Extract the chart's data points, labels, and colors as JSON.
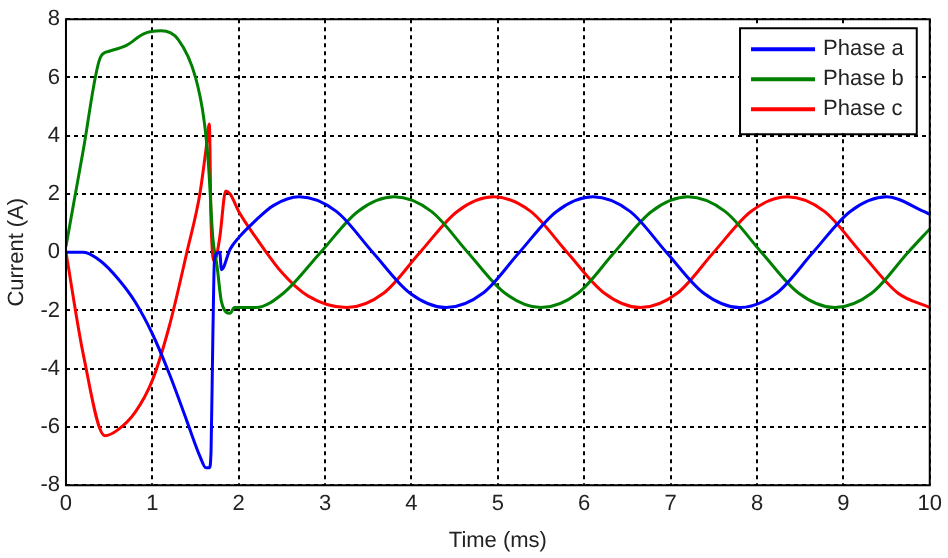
{
  "chart_data": {
    "type": "line",
    "xlabel": "Time (ms)",
    "ylabel": "Current (A)",
    "xlim": [
      0,
      10
    ],
    "ylim": [
      -8,
      8
    ],
    "xticks": [
      0,
      1,
      2,
      3,
      4,
      5,
      6,
      7,
      8,
      9,
      10
    ],
    "yticks": [
      -8,
      -6,
      -4,
      -2,
      0,
      2,
      4,
      6,
      8
    ],
    "grid": true,
    "legend": "top right",
    "marker": "none",
    "line_style": "solid",
    "series": [
      {
        "name": "Phase a",
        "color": "#0000ff",
        "x": [
          0,
          0.2,
          0.4,
          0.6,
          0.8,
          1.0,
          1.2,
          1.4,
          1.55,
          1.62,
          1.66,
          1.68,
          1.7,
          1.72,
          1.78,
          1.8,
          1.9,
          2.0,
          2.2,
          2.4,
          2.7,
          3.13,
          3.55,
          3.98,
          4.4,
          4.83,
          5.25,
          5.68,
          6.1,
          6.53,
          6.95,
          7.38,
          7.8,
          8.23,
          8.65,
          9.08,
          9.5,
          9.93,
          10
        ],
        "values": [
          0,
          0,
          -0.3,
          -0.9,
          -1.7,
          -2.8,
          -4.2,
          -5.8,
          -7.0,
          -7.4,
          -7.4,
          -6.8,
          -3.0,
          -0.2,
          0,
          -0.6,
          0.1,
          0.5,
          1.1,
          1.6,
          1.9,
          1.4,
          0,
          -1.4,
          -1.9,
          -1.4,
          0,
          1.4,
          1.9,
          1.4,
          0,
          -1.4,
          -1.9,
          -1.4,
          0,
          1.4,
          1.9,
          1.4,
          1.3
        ]
      },
      {
        "name": "Phase b",
        "color": "#008000",
        "x": [
          0,
          0.2,
          0.4,
          0.5,
          0.7,
          0.9,
          1.1,
          1.3,
          1.5,
          1.6,
          1.65,
          1.7,
          1.75,
          1.8,
          1.9,
          1.95,
          2.2,
          2.52,
          2.95,
          3.38,
          3.8,
          4.23,
          4.65,
          5.08,
          5.5,
          5.93,
          6.35,
          6.78,
          7.2,
          7.63,
          8.05,
          8.48,
          8.9,
          9.33,
          9.75,
          10
        ],
        "values": [
          0.2,
          3.5,
          6.7,
          6.9,
          7.1,
          7.5,
          7.6,
          7.3,
          6.0,
          4.5,
          3.0,
          0.5,
          -0.5,
          -1.7,
          -2.1,
          -1.9,
          -1.9,
          -1.4,
          0,
          1.4,
          1.9,
          1.4,
          0,
          -1.4,
          -1.9,
          -1.4,
          0,
          1.4,
          1.9,
          1.4,
          0,
          -1.4,
          -1.9,
          -1.4,
          0,
          0.8
        ]
      },
      {
        "name": "Phase c",
        "color": "#ff0000",
        "x": [
          0,
          0.2,
          0.45,
          0.6,
          0.8,
          1.0,
          1.2,
          1.4,
          1.55,
          1.62,
          1.66,
          1.68,
          1.72,
          1.78,
          1.85,
          1.9,
          2.0,
          2.2,
          2.5,
          2.8,
          3.25,
          3.68,
          4.1,
          4.53,
          4.95,
          5.38,
          5.8,
          6.23,
          6.65,
          7.08,
          7.5,
          7.93,
          8.35,
          8.78,
          9.2,
          9.63,
          10
        ],
        "values": [
          0,
          -3.5,
          -6.3,
          -6.1,
          -5.5,
          -4.4,
          -2.5,
          0,
          2.0,
          3.5,
          4.4,
          1.0,
          -0.3,
          0.5,
          2.1,
          2.0,
          1.4,
          0.5,
          -0.7,
          -1.5,
          -1.9,
          -1.4,
          0,
          1.4,
          1.9,
          1.4,
          0,
          -1.4,
          -1.9,
          -1.4,
          0,
          1.4,
          1.9,
          1.4,
          0,
          -1.4,
          -1.9
        ]
      }
    ]
  }
}
